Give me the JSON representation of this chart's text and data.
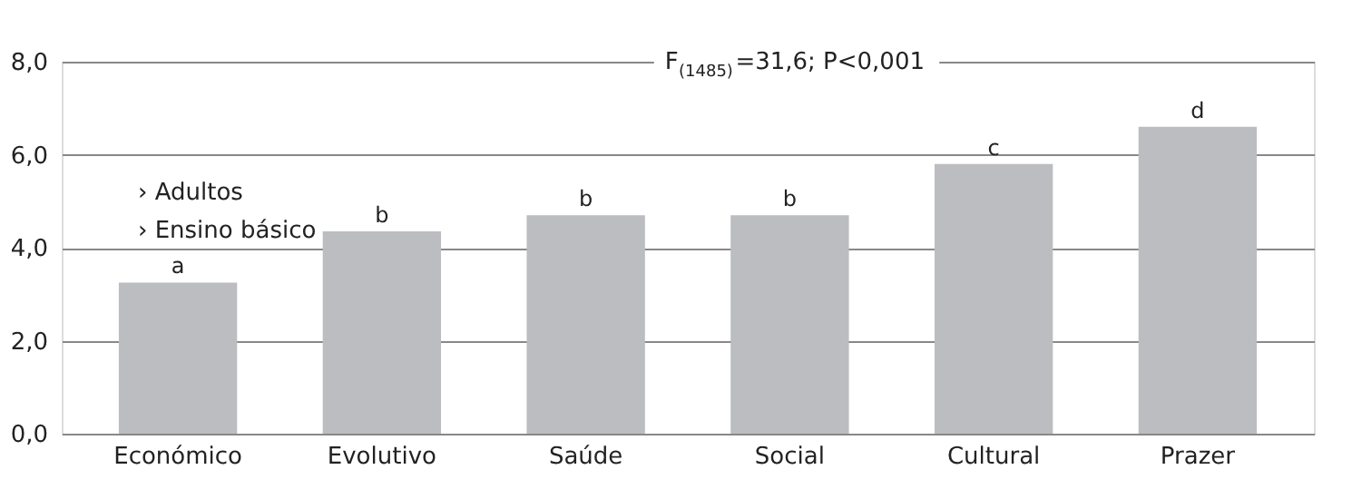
{
  "chart_data": {
    "type": "bar",
    "categories": [
      "Económico",
      "Evolutivo",
      "Saúde",
      "Social",
      "Cultural",
      "Prazer"
    ],
    "values": [
      3.25,
      4.35,
      4.7,
      4.7,
      5.8,
      6.6
    ],
    "value_labels": [
      "a",
      "b",
      "b",
      "b",
      "c",
      "d"
    ],
    "color": "#bcbdc0",
    "ylim": [
      0,
      8
    ],
    "yticks": [
      {
        "value": 0,
        "label": "0,0"
      },
      {
        "value": 2,
        "label": "2,0"
      },
      {
        "value": 4,
        "label": "4,0"
      },
      {
        "value": 6,
        "label": "6,0"
      },
      {
        "value": 8,
        "label": "8,0"
      }
    ],
    "grid": "y",
    "annotations": [
      "F$_{(1485)}$=31,6; P<0,001",
      "› Adultos",
      "› Ensino básico"
    ]
  }
}
